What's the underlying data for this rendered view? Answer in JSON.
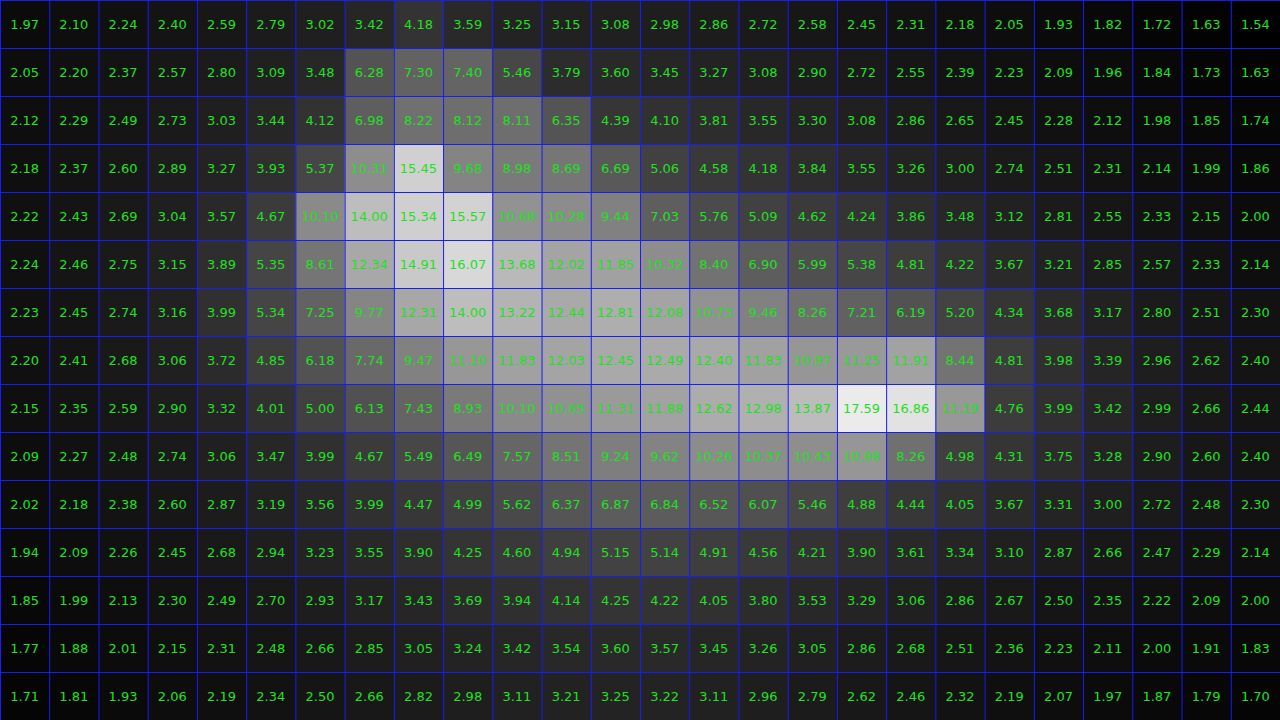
{
  "chart_data": {
    "type": "heatmap",
    "grid": true,
    "data_labels": true,
    "tick_labels": false,
    "cells": [
      [
        1.97,
        2.1,
        2.24,
        2.4,
        2.59,
        2.79,
        3.02,
        3.42,
        4.18,
        3.59,
        3.25,
        3.15,
        3.08,
        2.98,
        2.86,
        2.72,
        2.58,
        2.45,
        2.31,
        2.18,
        2.05,
        1.93,
        1.82,
        1.72,
        1.63,
        1.54
      ],
      [
        2.05,
        2.2,
        2.37,
        2.57,
        2.8,
        3.09,
        3.48,
        6.28,
        7.3,
        7.4,
        5.46,
        3.79,
        3.6,
        3.45,
        3.27,
        3.08,
        2.9,
        2.72,
        2.55,
        2.39,
        2.23,
        2.09,
        1.96,
        1.84,
        1.73,
        1.63
      ],
      [
        2.12,
        2.29,
        2.49,
        2.73,
        3.03,
        3.44,
        4.12,
        6.98,
        8.22,
        8.12,
        8.11,
        6.35,
        4.39,
        4.1,
        3.81,
        3.55,
        3.3,
        3.08,
        2.86,
        2.65,
        2.45,
        2.28,
        2.12,
        1.98,
        1.85,
        1.74
      ],
      [
        2.18,
        2.37,
        2.6,
        2.89,
        3.27,
        3.93,
        5.37,
        10.31,
        15.45,
        9.68,
        8.98,
        8.69,
        6.69,
        5.06,
        4.58,
        4.18,
        3.84,
        3.55,
        3.26,
        3.0,
        2.74,
        2.51,
        2.31,
        2.14,
        1.99,
        1.86
      ],
      [
        2.22,
        2.43,
        2.69,
        3.04,
        3.57,
        4.67,
        10.1,
        14.0,
        15.34,
        15.57,
        10.68,
        10.28,
        9.44,
        7.03,
        5.76,
        5.09,
        4.62,
        4.24,
        3.86,
        3.48,
        3.12,
        2.81,
        2.55,
        2.33,
        2.15,
        2.0
      ],
      [
        2.24,
        2.46,
        2.75,
        3.15,
        3.89,
        5.35,
        8.61,
        12.34,
        14.91,
        16.07,
        13.68,
        12.02,
        11.85,
        10.32,
        8.4,
        6.9,
        5.99,
        5.38,
        4.81,
        4.22,
        3.67,
        3.21,
        2.85,
        2.57,
        2.33,
        2.14
      ],
      [
        2.23,
        2.45,
        2.74,
        3.16,
        3.99,
        5.34,
        7.25,
        9.77,
        12.31,
        14.0,
        13.22,
        12.44,
        12.81,
        12.08,
        10.73,
        9.46,
        8.26,
        7.21,
        6.19,
        5.2,
        4.34,
        3.68,
        3.17,
        2.8,
        2.51,
        2.3
      ],
      [
        2.2,
        2.41,
        2.68,
        3.06,
        3.72,
        4.85,
        6.18,
        7.74,
        9.47,
        11.1,
        11.83,
        12.03,
        12.45,
        12.49,
        12.4,
        11.83,
        10.97,
        11.25,
        11.91,
        8.44,
        4.81,
        3.98,
        3.39,
        2.96,
        2.62,
        2.4
      ],
      [
        2.15,
        2.35,
        2.59,
        2.9,
        3.32,
        4.01,
        5.0,
        6.13,
        7.43,
        8.93,
        10.1,
        10.65,
        11.31,
        11.88,
        12.62,
        12.98,
        13.87,
        17.59,
        16.86,
        11.19,
        4.76,
        3.99,
        3.42,
        2.99,
        2.66,
        2.44
      ],
      [
        2.09,
        2.27,
        2.48,
        2.74,
        3.06,
        3.47,
        3.99,
        4.67,
        5.49,
        6.49,
        7.57,
        8.51,
        9.24,
        9.62,
        10.26,
        10.37,
        10.43,
        10.98,
        8.26,
        4.98,
        4.31,
        3.75,
        3.28,
        2.9,
        2.6,
        2.4
      ],
      [
        2.02,
        2.18,
        2.38,
        2.6,
        2.87,
        3.19,
        3.56,
        3.99,
        4.47,
        4.99,
        5.62,
        6.37,
        6.87,
        6.84,
        6.52,
        6.07,
        5.46,
        4.88,
        4.44,
        4.05,
        3.67,
        3.31,
        3.0,
        2.72,
        2.48,
        2.3
      ],
      [
        1.94,
        2.09,
        2.26,
        2.45,
        2.68,
        2.94,
        3.23,
        3.55,
        3.9,
        4.25,
        4.6,
        4.94,
        5.15,
        5.14,
        4.91,
        4.56,
        4.21,
        3.9,
        3.61,
        3.34,
        3.1,
        2.87,
        2.66,
        2.47,
        2.29,
        2.14
      ],
      [
        1.85,
        1.99,
        2.13,
        2.3,
        2.49,
        2.7,
        2.93,
        3.17,
        3.43,
        3.69,
        3.94,
        4.14,
        4.25,
        4.22,
        4.05,
        3.8,
        3.53,
        3.29,
        3.06,
        2.86,
        2.67,
        2.5,
        2.35,
        2.22,
        2.09,
        2.0
      ],
      [
        1.77,
        1.88,
        2.01,
        2.15,
        2.31,
        2.48,
        2.66,
        2.85,
        3.05,
        3.24,
        3.42,
        3.54,
        3.6,
        3.57,
        3.45,
        3.26,
        3.05,
        2.86,
        2.68,
        2.51,
        2.36,
        2.23,
        2.11,
        2.0,
        1.91,
        1.83
      ],
      [
        1.71,
        1.81,
        1.93,
        2.06,
        2.19,
        2.34,
        2.5,
        2.66,
        2.82,
        2.98,
        3.11,
        3.21,
        3.25,
        3.22,
        3.11,
        2.96,
        2.79,
        2.62,
        2.46,
        2.32,
        2.19,
        2.07,
        1.97,
        1.87,
        1.79,
        1.7
      ]
    ]
  }
}
